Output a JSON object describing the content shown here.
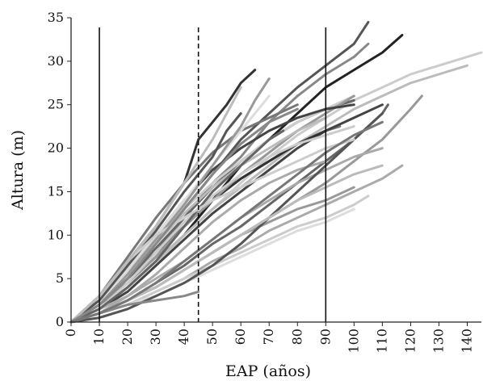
{
  "chart_data": {
    "type": "line",
    "title": "",
    "xlabel": "EAP (años)",
    "ylabel": "Altura (m)",
    "xlim": [
      0,
      145
    ],
    "ylim": [
      0,
      35
    ],
    "x_ticks": [
      0,
      10,
      20,
      30,
      40,
      50,
      60,
      70,
      80,
      90,
      100,
      110,
      120,
      130,
      140
    ],
    "y_ticks": [
      0,
      5,
      10,
      15,
      20,
      25,
      30,
      35
    ],
    "grid": false,
    "legend": "none",
    "reference_lines": [
      {
        "x": 10,
        "style": "solid"
      },
      {
        "x": 45,
        "style": "dashed"
      },
      {
        "x": 90,
        "style": "solid"
      }
    ],
    "series": [
      {
        "color": "#333333",
        "x": [
          0,
          10,
          20,
          30,
          40,
          45,
          50,
          55,
          60,
          65
        ],
        "y": [
          0,
          3,
          7,
          11,
          16,
          21,
          23,
          25,
          27.5,
          29
        ]
      },
      {
        "color": "#555555",
        "x": [
          0,
          10,
          20,
          30,
          40,
          50,
          60,
          70,
          80,
          90,
          100,
          105
        ],
        "y": [
          0,
          2,
          5,
          9,
          13,
          17,
          21,
          24,
          27,
          29.5,
          32,
          34.5
        ]
      },
      {
        "color": "#888888",
        "x": [
          0,
          10,
          20,
          30,
          40,
          50,
          60,
          70,
          80,
          90,
          100,
          105
        ],
        "y": [
          0,
          2,
          5,
          8,
          12,
          16,
          19,
          23,
          26,
          28.5,
          30.5,
          32
        ]
      },
      {
        "color": "#222222",
        "x": [
          0,
          10,
          20,
          30,
          40,
          50,
          60,
          70,
          80,
          90,
          100,
          110,
          117
        ],
        "y": [
          0,
          1.5,
          4,
          7,
          10,
          14,
          18,
          21,
          24,
          27,
          29,
          31,
          33
        ]
      },
      {
        "color": "#cccccc",
        "x": [
          0,
          10,
          20,
          30,
          40,
          50,
          60,
          70,
          80,
          90,
          100,
          110,
          120,
          130,
          145
        ],
        "y": [
          0,
          1.5,
          3.5,
          6.5,
          10,
          13,
          16,
          19,
          21.5,
          23.5,
          25.5,
          27,
          28.5,
          29.5,
          31
        ]
      },
      {
        "color": "#bbbbbb",
        "x": [
          0,
          10,
          20,
          30,
          40,
          50,
          60,
          70,
          80,
          90,
          100,
          110,
          120,
          130,
          140
        ],
        "y": [
          0,
          1.5,
          4,
          7,
          10,
          13,
          15.5,
          18,
          20.5,
          22.5,
          24.5,
          26,
          27.5,
          28.5,
          29.5
        ]
      },
      {
        "color": "#999999",
        "x": [
          0,
          10,
          20,
          30,
          40,
          50,
          60,
          70,
          80,
          90,
          100,
          110,
          120,
          124
        ],
        "y": [
          0,
          1,
          2.5,
          4,
          6,
          8,
          10,
          12,
          14,
          16,
          18.5,
          21,
          24.5,
          26
        ]
      },
      {
        "color": "#666666",
        "x": [
          0,
          10,
          20,
          30,
          40,
          50,
          60,
          70,
          80,
          90,
          100,
          110,
          112
        ],
        "y": [
          0,
          1,
          2.5,
          4.5,
          6.5,
          9,
          11,
          13.5,
          16,
          18.5,
          21,
          24,
          25
        ]
      },
      {
        "color": "#aaaaaa",
        "x": [
          0,
          10,
          20,
          30,
          40,
          50,
          60,
          70,
          80,
          90,
          100,
          110,
          117
        ],
        "y": [
          0,
          1,
          2,
          3.5,
          5,
          7,
          8.5,
          10.5,
          12,
          13.5,
          15,
          16.5,
          18
        ]
      },
      {
        "color": "#cccccc",
        "x": [
          0,
          10,
          20,
          30,
          40,
          50,
          60,
          70,
          80,
          90,
          100,
          105
        ],
        "y": [
          0,
          1,
          2,
          3.5,
          5,
          6.5,
          8,
          9.5,
          11,
          12,
          13.5,
          14.5
        ]
      },
      {
        "color": "#dddddd",
        "x": [
          0,
          10,
          20,
          30,
          40,
          50,
          60,
          70,
          80,
          90,
          100
        ],
        "y": [
          0,
          1,
          2,
          3,
          4.5,
          6,
          7.5,
          9,
          10.5,
          11.5,
          13
        ]
      },
      {
        "color": "#777777",
        "x": [
          0,
          10,
          20,
          30,
          40,
          50,
          60,
          70,
          80,
          90,
          95
        ],
        "y": [
          0,
          2,
          5,
          8,
          11,
          14,
          16.5,
          18.5,
          20.5,
          22,
          22.5
        ]
      },
      {
        "color": "#444444",
        "x": [
          0,
          10,
          20,
          30,
          40,
          50,
          60,
          70,
          80,
          90,
          100,
          110
        ],
        "y": [
          0,
          1.5,
          3.5,
          6.5,
          9.5,
          12.5,
          15,
          17.5,
          20,
          22,
          23.5,
          25
        ]
      },
      {
        "color": "#aaaaaa",
        "x": [
          0,
          10,
          20,
          30,
          40,
          50,
          60,
          70,
          80,
          90,
          100,
          110
        ],
        "y": [
          0,
          1.5,
          3,
          5,
          7,
          9.5,
          12,
          14,
          16,
          17.5,
          19,
          20
        ]
      },
      {
        "color": "#999999",
        "x": [
          0,
          10,
          20,
          30,
          40,
          50,
          60,
          70,
          80,
          90,
          100
        ],
        "y": [
          0,
          1,
          2.5,
          4,
          6,
          8,
          10,
          11.5,
          13,
          14,
          15.5
        ]
      },
      {
        "color": "#555555",
        "x": [
          0,
          10,
          20,
          30,
          40,
          45,
          50,
          60,
          70,
          80,
          90,
          100,
          110
        ],
        "y": [
          0,
          0.5,
          1.5,
          3,
          4.5,
          5.5,
          6.5,
          9,
          12,
          15,
          18,
          21,
          24
        ]
      },
      {
        "color": "#888888",
        "x": [
          0,
          10,
          20,
          30,
          40,
          45
        ],
        "y": [
          0,
          1,
          2,
          2.5,
          3,
          3.5
        ]
      },
      {
        "color": "#bbbbbb",
        "x": [
          0,
          10,
          20,
          30,
          40,
          50,
          60,
          70,
          80,
          90,
          100,
          110
        ],
        "y": [
          0,
          1,
          2.5,
          4,
          6,
          8,
          10,
          12,
          14,
          15.5,
          17,
          18
        ]
      },
      {
        "color": "#333333",
        "x": [
          0,
          10,
          20,
          30,
          40,
          50,
          60,
          70,
          80,
          90
        ],
        "y": [
          0,
          2,
          4.5,
          7.5,
          11,
          14,
          16.5,
          18.5,
          20.5,
          22
        ]
      },
      {
        "color": "#666666",
        "x": [
          0,
          10,
          20,
          30,
          40,
          50,
          60,
          70,
          80,
          90,
          100
        ],
        "y": [
          0,
          2,
          5,
          8.5,
          12,
          15.5,
          18.5,
          21,
          23,
          24.5,
          25.5
        ]
      },
      {
        "color": "#cccccc",
        "x": [
          0,
          10,
          20,
          30,
          40,
          50,
          60,
          70,
          80,
          90,
          100
        ],
        "y": [
          0,
          2.5,
          6,
          9.5,
          13,
          16,
          18.5,
          21,
          23,
          24.5,
          26
        ]
      },
      {
        "color": "#999999",
        "x": [
          0,
          10,
          20,
          30,
          40,
          50,
          60,
          70,
          80,
          90,
          100
        ],
        "y": [
          0,
          2,
          4.5,
          7.5,
          11,
          14,
          17,
          19.5,
          22,
          24,
          26
        ]
      },
      {
        "color": "#444444",
        "x": [
          0,
          10,
          20,
          30,
          40,
          50,
          60,
          70,
          80,
          90,
          100
        ],
        "y": [
          0,
          2.5,
          6,
          10,
          14,
          17.5,
          20,
          22,
          23.5,
          24.5,
          25
        ]
      },
      {
        "color": "#777777",
        "x": [
          0,
          10,
          20,
          30,
          40,
          50,
          60,
          70,
          80
        ],
        "y": [
          0,
          3,
          7.5,
          12,
          16,
          19.5,
          22,
          23.5,
          25
        ]
      },
      {
        "color": "#bbbbbb",
        "x": [
          0,
          10,
          20,
          30,
          40,
          50,
          60,
          70,
          80,
          90
        ],
        "y": [
          0,
          2,
          5.5,
          9,
          12.5,
          15.5,
          18,
          20,
          22,
          23.5
        ]
      },
      {
        "color": "#dddddd",
        "x": [
          0,
          10,
          20,
          30,
          40,
          50,
          60,
          70
        ],
        "y": [
          0,
          2.5,
          6,
          10,
          14,
          18,
          22,
          26
        ]
      },
      {
        "color": "#555555",
        "x": [
          0,
          10,
          20,
          30,
          40,
          50,
          55,
          60
        ],
        "y": [
          0,
          2.5,
          6.5,
          10.5,
          15,
          19,
          22,
          24
        ]
      },
      {
        "color": "#999999",
        "x": [
          0,
          10,
          20,
          30,
          40,
          50,
          60,
          65,
          70
        ],
        "y": [
          0,
          2,
          5.5,
          9.5,
          13.5,
          18,
          22.5,
          25.5,
          28
        ]
      },
      {
        "color": "#cccccc",
        "x": [
          0,
          10,
          20,
          30,
          40,
          50,
          60,
          70,
          80,
          90,
          100
        ],
        "y": [
          0,
          1.5,
          4.5,
          8,
          11.5,
          14.5,
          17,
          19,
          20.5,
          21.5,
          22.5
        ]
      },
      {
        "color": "#666666",
        "x": [
          0,
          10,
          20,
          30,
          40,
          50,
          60,
          70,
          75
        ],
        "y": [
          0,
          1.5,
          4,
          7,
          11,
          15,
          18,
          21,
          22
        ]
      },
      {
        "color": "#aaaaaa",
        "x": [
          0,
          10,
          20,
          30,
          40,
          50,
          60,
          70,
          80,
          90
        ],
        "y": [
          0,
          1,
          3,
          5.5,
          8.5,
          11.5,
          14,
          16,
          17.5,
          18.5
        ]
      },
      {
        "color": "#cccccc",
        "x": [
          0,
          10,
          20,
          30,
          40,
          50,
          60,
          70,
          80,
          90,
          100
        ],
        "y": [
          0,
          3,
          7,
          10,
          12,
          14,
          15.5,
          17,
          18.5,
          20,
          21
        ]
      },
      {
        "color": "#bbbbbb",
        "x": [
          0,
          10,
          20,
          30,
          40,
          50,
          60
        ],
        "y": [
          0,
          3,
          7,
          11,
          16,
          21,
          27
        ]
      },
      {
        "color": "#888888",
        "x": [
          0,
          10,
          20,
          30,
          40,
          50,
          60,
          70,
          80
        ],
        "y": [
          0,
          2,
          5,
          9,
          13,
          17,
          20.5,
          23,
          24.5
        ]
      },
      {
        "color": "#777777",
        "x": [
          0,
          10,
          20,
          30,
          40,
          50,
          60,
          70,
          80,
          90,
          100,
          110
        ],
        "y": [
          0,
          1,
          2.5,
          4.5,
          7,
          9.5,
          12,
          14.5,
          17,
          19.5,
          21.5,
          23
        ]
      }
    ]
  }
}
